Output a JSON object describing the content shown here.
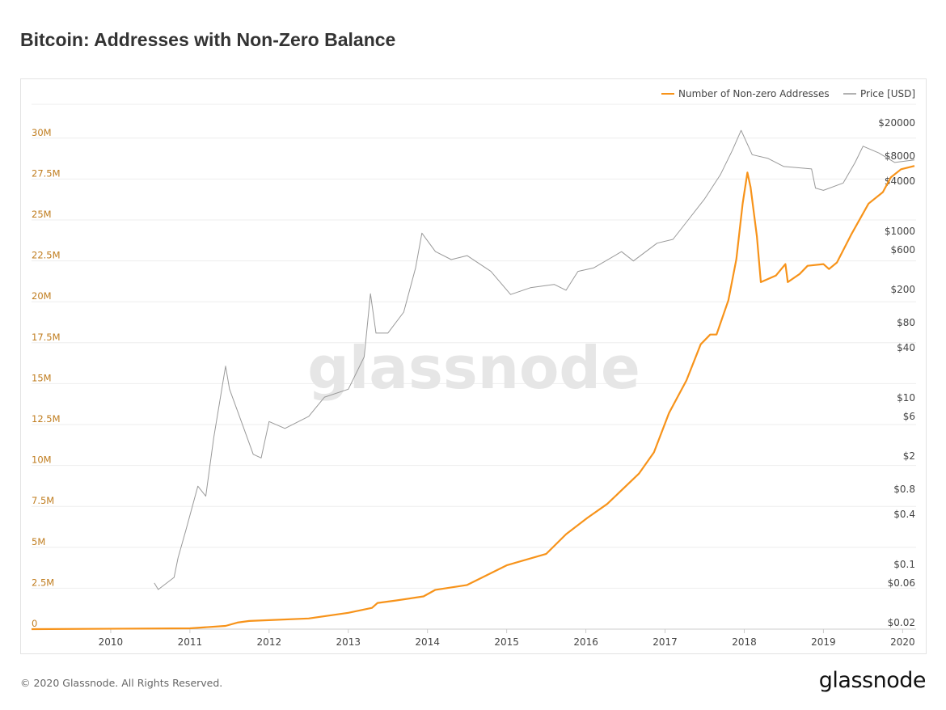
{
  "title": "Bitcoin: Addresses with Non-Zero Balance",
  "footer": {
    "copyright": "© 2020 Glassnode. All Rights Reserved.",
    "logo": "glassnode"
  },
  "watermark": "glassnode",
  "chart_data": {
    "type": "line",
    "title": "Bitcoin: Addresses with Non-Zero Balance",
    "legend_position": "top-right",
    "x_ticks": [
      "2010",
      "2011",
      "2012",
      "2013",
      "2014",
      "2015",
      "2016",
      "2017",
      "2018",
      "2019",
      "2020"
    ],
    "xlim": [
      2009.0,
      2020.17
    ],
    "y_left": {
      "ticks": [
        "0",
        "2.5M",
        "5M",
        "7.5M",
        "10M",
        "12.5M",
        "15M",
        "17.5M",
        "20M",
        "22.5M",
        "25M",
        "27.5M",
        "30M"
      ],
      "tick_values": [
        0,
        2.5,
        5,
        7.5,
        10,
        12.5,
        15,
        17.5,
        20,
        22.5,
        25,
        27.5,
        30
      ],
      "ylim": [
        0,
        31.5
      ],
      "unit": "M",
      "color": "#c07d1f"
    },
    "y_right": {
      "scale": "log",
      "ticks": [
        "$20000",
        "$8000",
        "$4000",
        "$1000",
        "$600",
        "$200",
        "$80",
        "$40",
        "$10",
        "$6",
        "$2",
        "$0.8",
        "$0.4",
        "$0.1",
        "$0.06",
        "$0.02"
      ],
      "tick_values": [
        20000,
        8000,
        4000,
        1000,
        600,
        200,
        80,
        40,
        10,
        6,
        2,
        0.8,
        0.4,
        0.1,
        0.06,
        0.02
      ],
      "ylim": [
        0.018,
        30000
      ]
    },
    "series": [
      {
        "name": "Number of Non-zero Addresses",
        "color": "#f7931a",
        "axis": "left",
        "x": [
          2009.0,
          2011.0,
          2011.45,
          2011.6,
          2011.75,
          2012.0,
          2012.5,
          2013.0,
          2013.3,
          2013.37,
          2013.6,
          2013.95,
          2014.1,
          2014.5,
          2015.0,
          2015.5,
          2015.75,
          2016.02,
          2016.27,
          2016.67,
          2016.86,
          2017.05,
          2017.27,
          2017.45,
          2017.57,
          2017.65,
          2017.8,
          2017.9,
          2017.98,
          2018.04,
          2018.08,
          2018.16,
          2018.21,
          2018.4,
          2018.52,
          2018.55,
          2018.7,
          2018.8,
          2019.0,
          2019.07,
          2019.17,
          2019.35,
          2019.57,
          2019.75,
          2019.85,
          2019.98,
          2020.15
        ],
        "values": [
          0,
          0.05,
          0.2,
          0.4,
          0.5,
          0.55,
          0.65,
          1.0,
          1.3,
          1.6,
          1.75,
          2.0,
          2.4,
          2.7,
          3.9,
          4.6,
          5.8,
          6.8,
          7.65,
          9.5,
          10.8,
          13.2,
          15.2,
          17.4,
          18.0,
          18.0,
          20.1,
          22.6,
          26.0,
          27.9,
          27.0,
          24.0,
          21.2,
          21.6,
          22.3,
          21.2,
          21.7,
          22.2,
          22.3,
          22.0,
          22.4,
          24.1,
          26.0,
          26.7,
          27.6,
          28.1,
          28.3
        ]
      },
      {
        "name": "Price [USD]",
        "color": "#999999",
        "axis": "right",
        "x": [
          2010.55,
          2010.6,
          2010.8,
          2010.85,
          2010.95,
          2011.1,
          2011.2,
          2011.3,
          2011.45,
          2011.5,
          2011.65,
          2011.8,
          2011.9,
          2012.0,
          2012.2,
          2012.5,
          2012.7,
          2013.0,
          2013.2,
          2013.28,
          2013.35,
          2013.5,
          2013.7,
          2013.85,
          2013.93,
          2014.1,
          2014.3,
          2014.5,
          2014.8,
          2015.05,
          2015.3,
          2015.6,
          2015.75,
          2015.9,
          2016.1,
          2016.45,
          2016.6,
          2016.9,
          2017.1,
          2017.3,
          2017.5,
          2017.7,
          2017.85,
          2017.96,
          2018.1,
          2018.3,
          2018.5,
          2018.85,
          2018.9,
          2019.0,
          2019.25,
          2019.4,
          2019.5,
          2019.7,
          2019.9,
          2020.15
        ],
        "values": [
          0.06,
          0.05,
          0.07,
          0.12,
          0.26,
          0.87,
          0.66,
          3.3,
          24,
          12.7,
          5.2,
          2.1,
          1.9,
          5.2,
          4.3,
          6.0,
          10.2,
          12.7,
          31,
          178,
          60,
          60,
          107,
          364,
          951,
          571,
          457,
          510,
          330,
          174,
          210,
          230,
          196,
          330,
          364,
          570,
          440,
          720,
          800,
          1400,
          2450,
          4800,
          9400,
          16300,
          8300,
          7500,
          6000,
          5600,
          3300,
          3100,
          3800,
          6700,
          10500,
          8700,
          6700,
          7200
        ]
      }
    ]
  }
}
